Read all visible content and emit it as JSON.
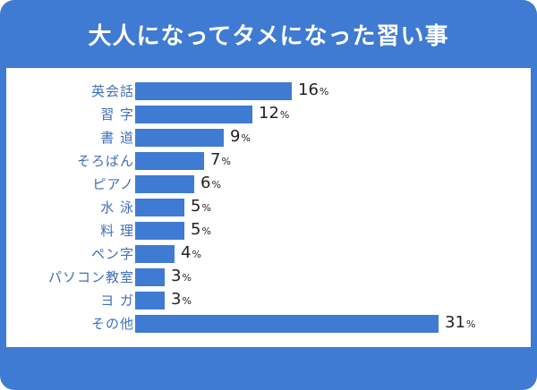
{
  "title": "大人になってタメになった習い事",
  "colors": {
    "frame": "#3f7bd2",
    "bar": "#3f7bd2",
    "label": "#3f6fb8",
    "value": "#222222"
  },
  "chart_data": {
    "type": "bar",
    "orientation": "horizontal",
    "title": "大人になってタメになった習い事",
    "categories": [
      "英会話",
      "習字",
      "書道",
      "そろばん",
      "ピアノ",
      "水泳",
      "料理",
      "ペン字",
      "パソコン教室",
      "ヨガ",
      "その他"
    ],
    "values": [
      16,
      12,
      9,
      7,
      6,
      5,
      5,
      4,
      3,
      3,
      31
    ],
    "unit": "%",
    "xlabel": "",
    "ylabel": "",
    "grid": false,
    "legend": null
  },
  "rows": [
    {
      "label": "英会話",
      "value": "16",
      "unit": "%"
    },
    {
      "label": "習 字",
      "value": "12",
      "unit": "%"
    },
    {
      "label": "書 道",
      "value": "9",
      "unit": "%"
    },
    {
      "label": "そろばん",
      "value": "7",
      "unit": "%"
    },
    {
      "label": "ピアノ",
      "value": "6",
      "unit": "%"
    },
    {
      "label": "水 泳",
      "value": "5",
      "unit": "%"
    },
    {
      "label": "料 理",
      "value": "5",
      "unit": "%"
    },
    {
      "label": "ペン字",
      "value": "4",
      "unit": "%"
    },
    {
      "label": "パソコン教室",
      "value": "3",
      "unit": "%"
    },
    {
      "label": "ヨ ガ",
      "value": "3",
      "unit": "%"
    },
    {
      "label": "その他",
      "value": "31",
      "unit": "%"
    }
  ]
}
